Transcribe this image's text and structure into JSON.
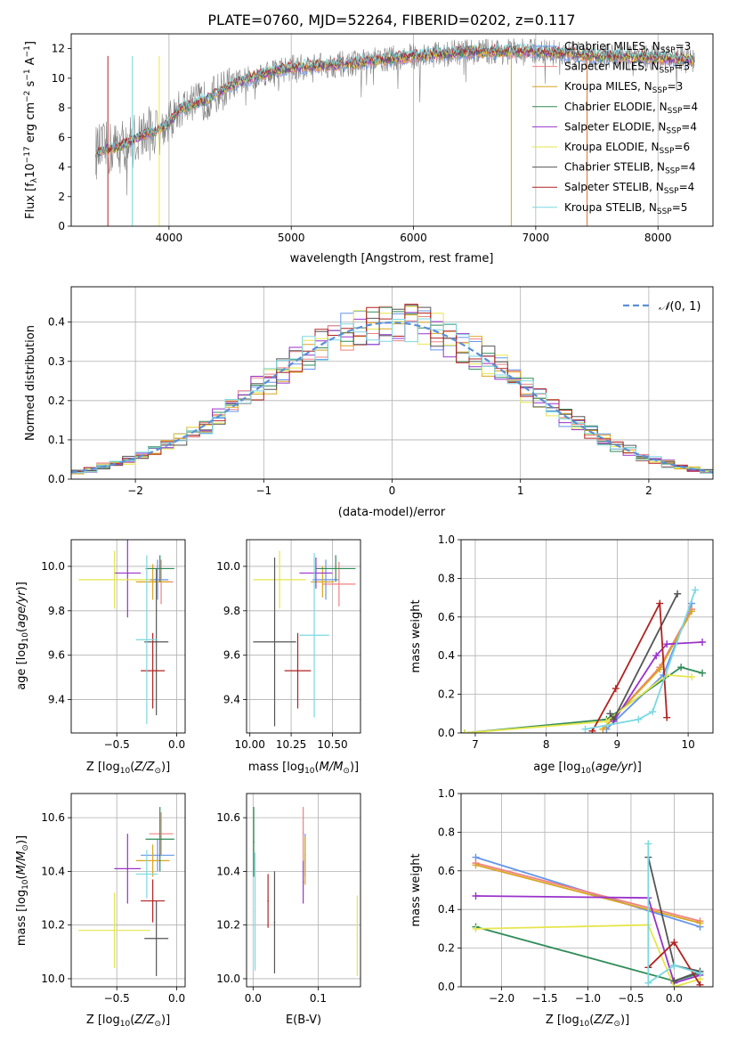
{
  "figure_title": "PLATE=0760, MJD=52264, FIBERID=0202, z=0.117",
  "colors": {
    "Chabrier MILES": "#6495ed",
    "Salpeter MILES": "#f08080",
    "Kroupa MILES": "#daa520",
    "Chabrier ELODIE": "#2e8b57",
    "Salpeter ELODIE": "#9932cc",
    "Kroupa ELODIE": "#e6e64d",
    "Chabrier STELIB": "#555555",
    "Salpeter STELIB": "#b22222",
    "Kroupa STELIB": "#7ad8e0"
  },
  "chart_data": [
    {
      "id": "spectrum",
      "type": "line",
      "xlabel": "wavelength [Angstrom, rest frame]",
      "ylabel": "Flux [f_λ10^-17 erg cm^-2 s^-1 A^-1]",
      "xlim": [
        3200,
        8450
      ],
      "ylim": [
        0,
        13
      ],
      "xticks": [
        4000,
        5000,
        6000,
        7000,
        8000
      ],
      "yticks": [
        0,
        2,
        4,
        6,
        8,
        10,
        12
      ],
      "grid": "x-only",
      "legend_position": "right",
      "spectrum_knots": {
        "x": [
          3400,
          3600,
          3800,
          3900,
          4000,
          4100,
          4300,
          4500,
          4800,
          5000,
          5500,
          6000,
          6500,
          7000,
          7500,
          8000,
          8300
        ],
        "y": [
          5.0,
          5.4,
          6.2,
          6.5,
          7.0,
          8.0,
          8.5,
          9.5,
          10.4,
          10.7,
          11.0,
          11.5,
          11.8,
          11.8,
          11.5,
          11.4,
          11.2
        ]
      },
      "series": [
        {
          "name": "Chabrier MILES",
          "n_ssp": "3"
        },
        {
          "name": "Salpeter MILES",
          "n_ssp": "3"
        },
        {
          "name": "Kroupa MILES",
          "n_ssp": "3"
        },
        {
          "name": "Chabrier ELODIE",
          "n_ssp": "4"
        },
        {
          "name": "Salpeter ELODIE",
          "n_ssp": "4"
        },
        {
          "name": "Kroupa ELODIE",
          "n_ssp": "6"
        },
        {
          "name": "Chabrier STELIB",
          "n_ssp": "4"
        },
        {
          "name": "Salpeter STELIB",
          "n_ssp": "4"
        },
        {
          "name": "Kroupa STELIB",
          "n_ssp": "5"
        }
      ]
    },
    {
      "id": "residuals",
      "type": "area",
      "xlabel": "(data-model)/error",
      "ylabel": "Normed distribution",
      "xlim": [
        -2.5,
        2.5
      ],
      "ylim": [
        0,
        0.49
      ],
      "xticks": [
        -2,
        -1,
        0,
        1,
        2
      ],
      "yticks": [
        0.0,
        0.1,
        0.2,
        0.3,
        0.4
      ],
      "grid": "on",
      "legend_position": "top-right",
      "reference_curve": "N(0,1)",
      "bin_width": 0.1
    },
    {
      "id": "age-metal",
      "type": "scatter",
      "xlabel": "Z [log10(Z/Z_sun)]",
      "ylabel": "age [log10(age/yr)]",
      "xlim": [
        -0.88,
        0.07
      ],
      "ylim": [
        9.25,
        10.12
      ],
      "xticks": [
        -0.5,
        0.0
      ],
      "yticks": [
        9.4,
        9.6,
        9.8,
        10.0
      ],
      "grid": "on",
      "points": [
        {
          "series": "Chabrier MILES",
          "x": -0.16,
          "xerr": 0.09,
          "y": 9.94,
          "yerr": 0.09
        },
        {
          "series": "Salpeter MILES",
          "x": -0.13,
          "xerr": 0.1,
          "y": 9.93,
          "yerr": 0.1
        },
        {
          "series": "Kroupa MILES",
          "x": -0.2,
          "xerr": 0.14,
          "y": 9.93,
          "yerr": 0.08
        },
        {
          "series": "Chabrier ELODIE",
          "x": -0.14,
          "xerr": 0.12,
          "y": 9.99,
          "yerr": 0.06
        },
        {
          "series": "Salpeter ELODIE",
          "x": -0.41,
          "xerr": 0.11,
          "y": 9.97,
          "yerr": 0.2
        },
        {
          "series": "Kroupa ELODIE",
          "x": -0.52,
          "xerr": 0.3,
          "y": 9.94,
          "yerr": 0.13
        },
        {
          "series": "Chabrier STELIB",
          "x": -0.17,
          "xerr": 0.1,
          "y": 9.66,
          "yerr": 0.33
        },
        {
          "series": "Salpeter STELIB",
          "x": -0.2,
          "xerr": 0.1,
          "y": 9.53,
          "yerr": 0.17
        },
        {
          "series": "Kroupa STELIB",
          "x": -0.25,
          "xerr": 0.09,
          "y": 9.67,
          "yerr": 0.38
        }
      ]
    },
    {
      "id": "age-mass",
      "type": "scatter",
      "xlabel": "mass [log10(M/M_sun)]",
      "ylabel": "",
      "xlim": [
        9.98,
        10.67
      ],
      "ylim": [
        9.25,
        10.12
      ],
      "xticks": [
        10.0,
        10.25,
        10.5
      ],
      "yticks": [
        9.4,
        9.6,
        9.8,
        10.0
      ],
      "grid": "on",
      "points": [
        {
          "series": "Chabrier MILES",
          "x": 10.46,
          "xerr": 0.08,
          "y": 9.94,
          "yerr": 0.09
        },
        {
          "series": "Salpeter MILES",
          "x": 10.54,
          "xerr": 0.1,
          "y": 9.92,
          "yerr": 0.1
        },
        {
          "series": "Kroupa MILES",
          "x": 10.44,
          "xerr": 0.07,
          "y": 9.93,
          "yerr": 0.07
        },
        {
          "series": "Chabrier ELODIE",
          "x": 10.52,
          "xerr": 0.12,
          "y": 9.99,
          "yerr": 0.06
        },
        {
          "series": "Salpeter ELODIE",
          "x": 10.4,
          "xerr": 0.1,
          "y": 9.97,
          "yerr": 0.07
        },
        {
          "series": "Kroupa ELODIE",
          "x": 10.18,
          "xerr": 0.16,
          "y": 9.94,
          "yerr": 0.13
        },
        {
          "series": "Chabrier STELIB",
          "x": 10.15,
          "xerr": 0.13,
          "y": 9.66,
          "yerr": 0.38
        },
        {
          "series": "Salpeter STELIB",
          "x": 10.29,
          "xerr": 0.08,
          "y": 9.53,
          "yerr": 0.17
        },
        {
          "series": "Kroupa STELIB",
          "x": 10.39,
          "xerr": 0.09,
          "y": 9.69,
          "yerr": 0.37
        }
      ]
    },
    {
      "id": "weight-age",
      "type": "line",
      "xlabel": "age [log10(age/yr)]",
      "ylabel": "mass weight",
      "xlim": [
        6.8,
        10.35
      ],
      "ylim": [
        0,
        1
      ],
      "xticks": [
        7,
        8,
        9,
        10
      ],
      "yticks": [
        0.0,
        0.2,
        0.4,
        0.6,
        0.8,
        1.0
      ],
      "grid": "on",
      "series": [
        {
          "name": "Chabrier MILES",
          "x": [
            8.85,
            9.65,
            10.05
          ],
          "y": [
            0.02,
            0.3,
            0.67
          ]
        },
        {
          "name": "Salpeter MILES",
          "x": [
            8.8,
            9.6,
            10.05
          ],
          "y": [
            0.02,
            0.34,
            0.64
          ]
        },
        {
          "name": "Kroupa MILES",
          "x": [
            8.8,
            9.6,
            10.05
          ],
          "y": [
            0.02,
            0.33,
            0.63
          ]
        },
        {
          "name": "Chabrier ELODIE",
          "x": [
            6.85,
            8.85,
            9.9,
            10.2
          ],
          "y": [
            0.0,
            0.07,
            0.34,
            0.31
          ]
        },
        {
          "name": "Salpeter ELODIE",
          "x": [
            8.95,
            9.55,
            9.7,
            10.2
          ],
          "y": [
            0.06,
            0.4,
            0.46,
            0.47
          ]
        },
        {
          "name": "Kroupa ELODIE",
          "x": [
            6.85,
            8.85,
            9.7,
            10.05
          ],
          "y": [
            0.0,
            0.06,
            0.3,
            0.29
          ]
        },
        {
          "name": "Chabrier STELIB",
          "x": [
            8.9,
            8.95,
            9.85
          ],
          "y": [
            0.1,
            0.07,
            0.72
          ]
        },
        {
          "name": "Salpeter STELIB",
          "x": [
            8.65,
            8.98,
            9.6,
            9.7
          ],
          "y": [
            0.01,
            0.23,
            0.67,
            0.08
          ]
        },
        {
          "name": "Kroupa STELIB",
          "x": [
            8.55,
            9.3,
            9.5,
            10.1
          ],
          "y": [
            0.02,
            0.07,
            0.11,
            0.74
          ]
        }
      ]
    },
    {
      "id": "mass-metal",
      "type": "scatter",
      "xlabel": "Z [log10(Z/Z_sun)]",
      "ylabel": "mass [log10(M/M_sun)]",
      "xlim": [
        -0.88,
        0.07
      ],
      "ylim": [
        9.97,
        10.69
      ],
      "xticks": [
        -0.5,
        0.0
      ],
      "yticks": [
        10.0,
        10.2,
        10.4,
        10.6
      ],
      "grid": "on",
      "points": [
        {
          "series": "Chabrier MILES",
          "x": -0.16,
          "xerr": 0.14,
          "y": 10.46,
          "yerr": 0.06
        },
        {
          "series": "Salpeter MILES",
          "x": -0.13,
          "xerr": 0.1,
          "y": 10.54,
          "yerr": 0.08
        },
        {
          "series": "Kroupa MILES",
          "x": -0.2,
          "xerr": 0.14,
          "y": 10.44,
          "yerr": 0.06
        },
        {
          "series": "Chabrier ELODIE",
          "x": -0.14,
          "xerr": 0.12,
          "y": 10.52,
          "yerr": 0.12
        },
        {
          "series": "Salpeter ELODIE",
          "x": -0.41,
          "xerr": 0.11,
          "y": 10.41,
          "yerr": 0.13
        },
        {
          "series": "Kroupa ELODIE",
          "x": -0.52,
          "xerr": 0.3,
          "y": 10.18,
          "yerr": 0.14
        },
        {
          "series": "Chabrier STELIB",
          "x": -0.17,
          "xerr": 0.1,
          "y": 10.15,
          "yerr": 0.14
        },
        {
          "series": "Salpeter STELIB",
          "x": -0.2,
          "xerr": 0.1,
          "y": 10.29,
          "yerr": 0.08
        },
        {
          "series": "Kroupa STELIB",
          "x": -0.25,
          "xerr": 0.09,
          "y": 10.39,
          "yerr": 0.09
        }
      ]
    },
    {
      "id": "mass-ebv",
      "type": "scatter",
      "xlabel": "E(B-V)",
      "ylabel": "",
      "xlim": [
        -0.01,
        0.165
      ],
      "ylim": [
        9.97,
        10.69
      ],
      "xticks": [
        0.0,
        0.1
      ],
      "yticks": [
        10.0,
        10.2,
        10.4,
        10.6
      ],
      "grid": "on",
      "points": [
        {
          "series": "Chabrier MILES",
          "x": 0.08,
          "xerr": 0.001,
          "y": 10.46,
          "yerr": 0.08
        },
        {
          "series": "Salpeter MILES",
          "x": 0.077,
          "xerr": 0.001,
          "y": 10.54,
          "yerr": 0.1
        },
        {
          "series": "Kroupa MILES",
          "x": 0.08,
          "xerr": 0.001,
          "y": 10.44,
          "yerr": 0.09
        },
        {
          "series": "Chabrier ELODIE",
          "x": 0.001,
          "xerr": 0.001,
          "y": 10.51,
          "yerr": 0.13
        },
        {
          "series": "Salpeter ELODIE",
          "x": 0.077,
          "xerr": 0.001,
          "y": 10.36,
          "yerr": 0.08
        },
        {
          "series": "Kroupa ELODIE",
          "x": 0.16,
          "xerr": 0.001,
          "y": 10.16,
          "yerr": 0.15
        },
        {
          "series": "Chabrier STELIB",
          "x": 0.033,
          "xerr": 0.001,
          "y": 10.21,
          "yerr": 0.19
        },
        {
          "series": "Salpeter STELIB",
          "x": 0.023,
          "xerr": 0.001,
          "y": 10.29,
          "yerr": 0.1
        },
        {
          "series": "Kroupa STELIB",
          "x": 0.003,
          "xerr": 0.001,
          "y": 10.25,
          "yerr": 0.22
        }
      ]
    },
    {
      "id": "weight-metal",
      "type": "line",
      "xlabel": "Z [log10(Z/Z_sun)]",
      "ylabel": "mass weight",
      "xlim": [
        -2.47,
        0.45
      ],
      "ylim": [
        0,
        1
      ],
      "xticks": [
        -2.0,
        -1.5,
        -1.0,
        -0.5,
        0.0
      ],
      "yticks": [
        0.0,
        0.2,
        0.4,
        0.6,
        0.8,
        1.0
      ],
      "grid": "on",
      "series": [
        {
          "name": "Chabrier MILES",
          "x": [
            -2.3,
            0.3
          ],
          "y": [
            0.67,
            0.31
          ]
        },
        {
          "name": "Salpeter MILES",
          "x": [
            -2.3,
            0.3
          ],
          "y": [
            0.64,
            0.34
          ]
        },
        {
          "name": "Kroupa MILES",
          "x": [
            -2.3,
            0.3
          ],
          "y": [
            0.63,
            0.33
          ]
        },
        {
          "name": "Chabrier ELODIE",
          "x": [
            -2.3,
            0.0,
            0.3
          ],
          "y": [
            0.31,
            0.03,
            0.07
          ]
        },
        {
          "name": "Salpeter ELODIE",
          "x": [
            -2.3,
            -0.3,
            0.0,
            0.3
          ],
          "y": [
            0.47,
            0.46,
            0.02,
            0.06
          ]
        },
        {
          "name": "Kroupa ELODIE",
          "x": [
            -2.3,
            -0.3,
            0.0,
            0.3
          ],
          "y": [
            0.3,
            0.32,
            0.0,
            0.04
          ]
        },
        {
          "name": "Chabrier STELIB",
          "x": [
            -0.3,
            0.0,
            0.3,
            0.0
          ],
          "y": [
            0.67,
            0.11,
            0.08,
            0.03
          ]
        },
        {
          "name": "Salpeter STELIB",
          "x": [
            -0.3,
            0.0,
            0.3
          ],
          "y": [
            0.1,
            0.23,
            0.01
          ]
        },
        {
          "name": "Kroupa STELIB",
          "x": [
            -0.3,
            -0.3,
            0.0,
            0.3
          ],
          "y": [
            0.74,
            0.02,
            0.11,
            0.07
          ]
        }
      ]
    }
  ]
}
